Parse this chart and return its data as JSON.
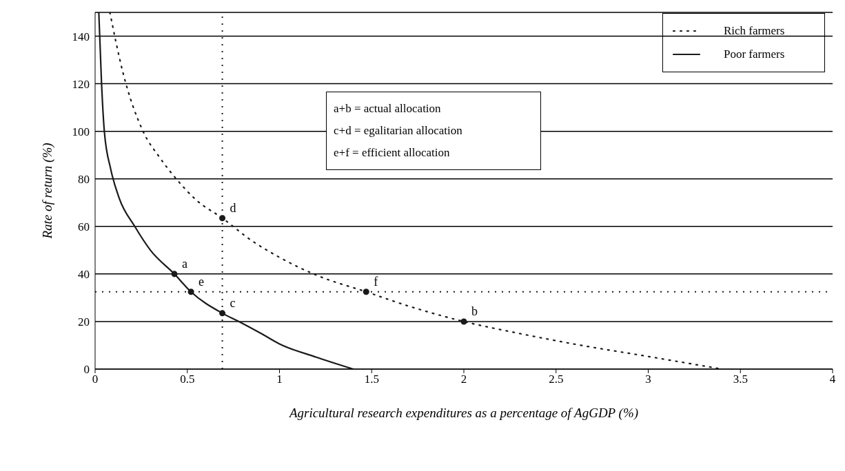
{
  "chart_data": {
    "type": "line",
    "xlabel": "Agricultural research expenditures as a percentage of AgGDP (%)",
    "ylabel": "Rate of return (%)",
    "xlim": [
      0,
      4
    ],
    "ylim": [
      0,
      150
    ],
    "xticks": [
      0,
      0.5,
      1,
      1.5,
      2,
      2.5,
      3,
      3.5,
      4
    ],
    "yticks": [
      0,
      20,
      40,
      60,
      80,
      100,
      120,
      140
    ],
    "grid": "y",
    "legend": "top right",
    "series": [
      {
        "name": "Rich farmers",
        "color": "#1a1a1a",
        "line_style": "dotted",
        "x": [
          0.08,
          0.15,
          0.26,
          0.35,
          0.44,
          0.55,
          0.69,
          0.85,
          1.0,
          1.2,
          1.47,
          1.7,
          2.0,
          2.3,
          2.6,
          3.0,
          3.4
        ],
        "values": [
          150,
          125,
          100,
          89,
          80,
          71,
          63.5,
          54,
          47,
          39.5,
          32.5,
          26.5,
          20,
          15,
          10.5,
          5.3,
          0
        ]
      },
      {
        "name": "Poor farmers",
        "color": "#1a1a1a",
        "line_style": "solid",
        "x": [
          0.02,
          0.035,
          0.05,
          0.085,
          0.13,
          0.215,
          0.3,
          0.43,
          0.52,
          0.69,
          0.78,
          0.9,
          1.0,
          1.2,
          1.4
        ],
        "values": [
          150,
          120,
          100,
          84,
          72,
          60,
          50,
          40,
          32.5,
          23.5,
          20,
          15,
          10.6,
          5,
          0
        ]
      },
      {
        "type": "scatter",
        "color": "#1a1a1a",
        "marker": "circle",
        "x": [
          0.43,
          2.0,
          0.69,
          0.69,
          0.52,
          1.47
        ],
        "values": [
          40,
          20,
          23.5,
          63.5,
          32.5,
          32.5
        ]
      }
    ],
    "ref_lines": [
      {
        "axis": "x",
        "value": 0.69,
        "line_style": "dotted",
        "color": "#1a1a1a"
      },
      {
        "axis": "y",
        "value": 32.5,
        "line_style": "dotted",
        "color": "#1a1a1a"
      }
    ],
    "annotations": [
      {
        "text": "a",
        "x": 0.43,
        "y": 40
      },
      {
        "text": "b",
        "x": 2.0,
        "y": 20
      },
      {
        "text": "c",
        "x": 0.69,
        "y": 23.5
      },
      {
        "text": "d",
        "x": 0.69,
        "y": 63.5
      },
      {
        "text": "e",
        "x": 0.52,
        "y": 32.5
      },
      {
        "text": "f",
        "x": 1.47,
        "y": 32.5
      },
      "a+b = actual allocation",
      "c+d = egalitarian  allocation",
      "e+f = efficient  allocation"
    ]
  }
}
